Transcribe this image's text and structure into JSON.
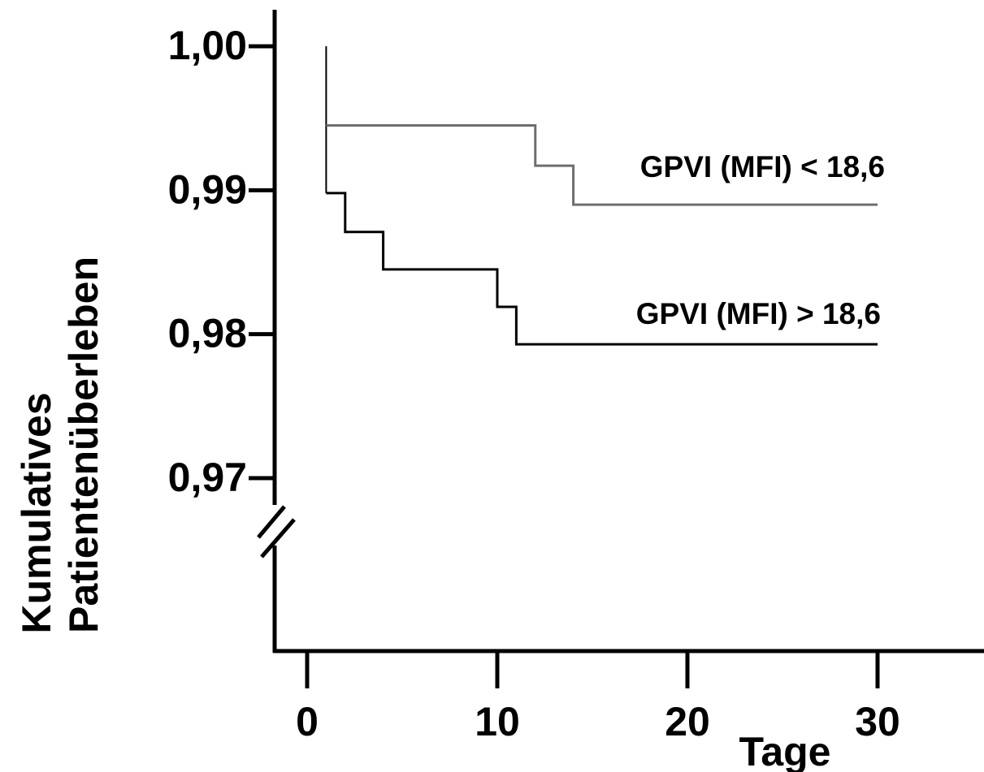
{
  "chart_data": {
    "type": "line",
    "subtype": "kaplan-meier step",
    "ylabel_line1": "Kumulatives",
    "ylabel_line2": "Patientenüberleben",
    "xlabel": "Tage",
    "ylim": [
      0.97,
      1.0
    ],
    "xlim": [
      0,
      30
    ],
    "y_axis_break": true,
    "grid": false,
    "y_ticks": [
      {
        "value": 1.0,
        "label": "1,00"
      },
      {
        "value": 0.99,
        "label": "0,99"
      },
      {
        "value": 0.98,
        "label": "0,98"
      },
      {
        "value": 0.97,
        "label": "0,97"
      }
    ],
    "x_ticks": [
      {
        "value": 0,
        "label": "0"
      },
      {
        "value": 10,
        "label": "10"
      },
      {
        "value": 20,
        "label": "20"
      },
      {
        "value": 30,
        "label": "30"
      }
    ],
    "series": [
      {
        "name": "GPVI (MFI) < 18,6",
        "color": "#6e6e6e",
        "x": [
          1,
          12,
          14,
          30
        ],
        "y": [
          0.9945,
          0.9917,
          0.989,
          0.989
        ]
      },
      {
        "name": "GPVI (MFI) > 18,6",
        "color": "#000000",
        "x": [
          1,
          2,
          4,
          10,
          11,
          30
        ],
        "y": [
          0.9898,
          0.9871,
          0.9845,
          0.9819,
          0.9793,
          0.9793
        ]
      }
    ]
  }
}
